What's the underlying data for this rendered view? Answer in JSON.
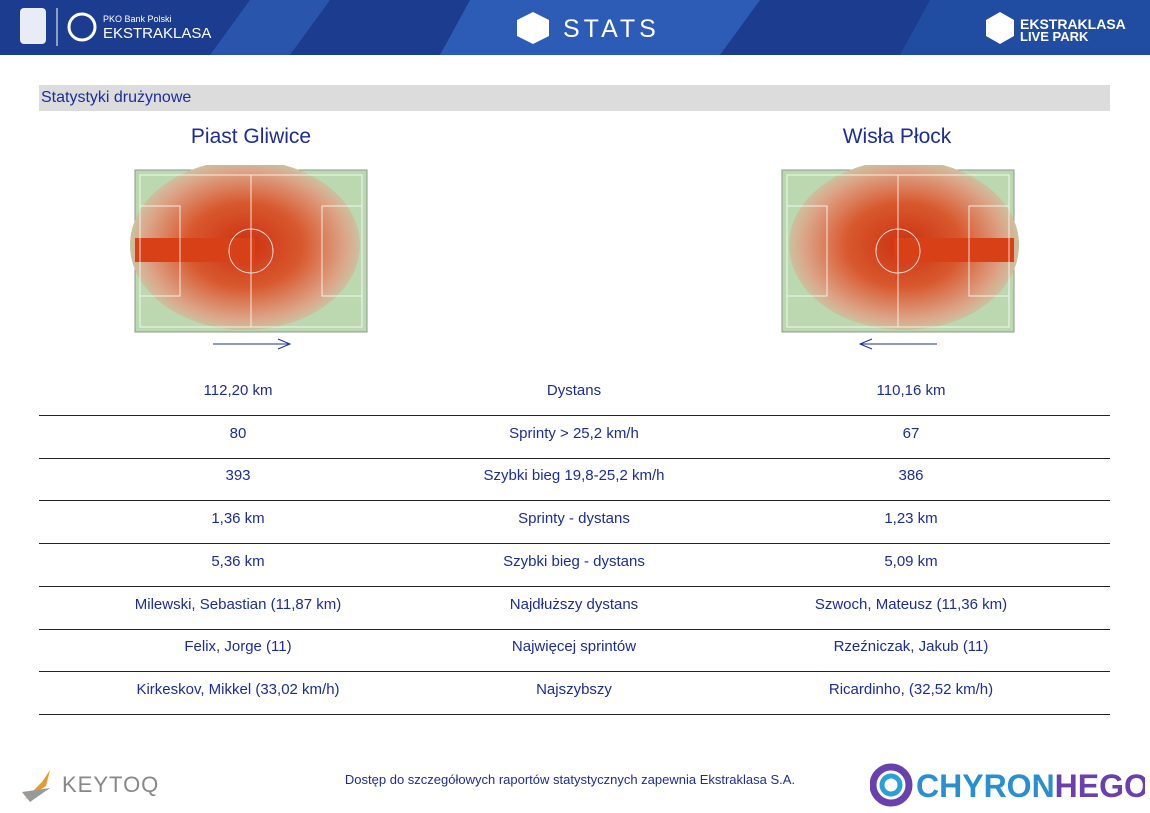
{
  "header": {
    "sponsor": "PKO Bank Polski",
    "league": "EKSTRAKLASA",
    "stats": "STATS",
    "park_top": "EKSTRAKLASA",
    "park_bottom": "LIVE PARK"
  },
  "section_title": "Statystyki drużynowe",
  "teams": [
    "Piast Gliwice",
    "Wisła Płock"
  ],
  "table": {
    "rows": [
      [
        "112,20 km",
        "Dystans",
        "110,16 km"
      ],
      [
        "80",
        "Sprinty > 25,2 km/h",
        "67"
      ],
      [
        "393",
        "Szybki bieg 19,8-25,2 km/h",
        "386"
      ],
      [
        "1,36 km",
        "Sprinty - dystans",
        "1,23 km"
      ],
      [
        "5,36 km",
        "Szybki bieg - dystans",
        "5,09 km"
      ],
      [
        "Milewski, Sebastian (11,87 km)",
        "Najdłuższy dystans",
        "Szwoch, Mateusz (11,36 km)"
      ],
      [
        "Felix, Jorge (11)",
        "Najwięcej sprintów",
        "Rzeźniczak, Jakub (11)"
      ],
      [
        "Kirkeskov, Mikkel (33,02 km/h)",
        "Najszybszy",
        "Ricardinho,  (32,52 km/h)"
      ]
    ]
  },
  "footer": {
    "left_logo": "KEYTOQ",
    "note": "Dostęp do szczegółowych raportów statystycznych zapewnia Ekstraklasa S.A.",
    "right_logo_a": "CHYRON",
    "right_logo_b": "HEGO"
  }
}
